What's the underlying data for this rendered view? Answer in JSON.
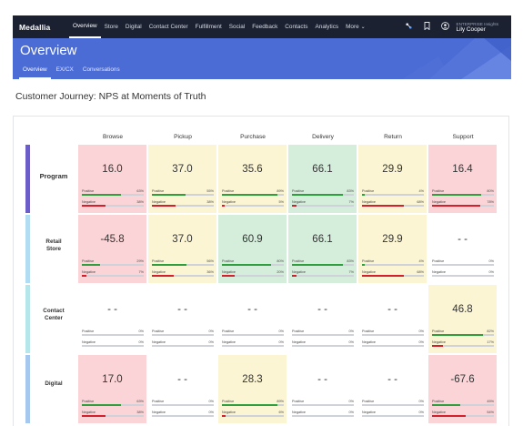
{
  "nav": {
    "brand": "Medallia",
    "items": [
      {
        "label": "Overview",
        "active": true
      },
      {
        "label": "Store"
      },
      {
        "label": "Digital"
      },
      {
        "label": "Contact Center"
      },
      {
        "label": "Fulfillment"
      },
      {
        "label": "Social"
      },
      {
        "label": "Feedback"
      },
      {
        "label": "Contacts"
      },
      {
        "label": "Analytics"
      },
      {
        "label": "More"
      }
    ],
    "user_org": "ENTERPRISE Insights",
    "user_name": "Lily Cooper"
  },
  "header": {
    "title": "Overview",
    "tabs": [
      {
        "label": "Overview",
        "active": true
      },
      {
        "label": "EX/CX"
      },
      {
        "label": "Conversations"
      }
    ]
  },
  "page_title": "Customer Journey: NPS at Moments of Truth",
  "grid": {
    "positive_label": "Positive",
    "negative_label": "Negative",
    "columns": [
      "Browse",
      "Pickup",
      "Purchase",
      "Delivery",
      "Return",
      "Support"
    ],
    "rows": [
      {
        "label": "Program",
        "bar_color": "#6b5fc7",
        "cells": [
          {
            "value": "16.0",
            "bg": "#fad4d6",
            "pos": "63%",
            "neg": "38%",
            "pos_frac": 0.63,
            "neg_frac": 0.38
          },
          {
            "value": "37.0",
            "bg": "#fbf5d3",
            "pos": "55%",
            "neg": "38%",
            "pos_frac": 0.55,
            "neg_frac": 0.38
          },
          {
            "value": "35.6",
            "bg": "#fbf5d3",
            "pos": "89%",
            "neg": "5%",
            "pos_frac": 0.89,
            "neg_frac": 0.05
          },
          {
            "value": "66.1",
            "bg": "#d5eedb",
            "pos": "83%",
            "neg": "7%",
            "pos_frac": 0.83,
            "neg_frac": 0.07
          },
          {
            "value": "29.9",
            "bg": "#fbf5d3",
            "pos": "4%",
            "neg": "68%",
            "pos_frac": 0.04,
            "neg_frac": 0.68
          },
          {
            "value": "16.4",
            "bg": "#fad4d6",
            "pos": "80%",
            "neg": "78%",
            "pos_frac": 0.8,
            "neg_frac": 0.78
          }
        ]
      },
      {
        "label": "Retail Store",
        "bar_color": "#b2dcf2",
        "cells": [
          {
            "value": "-45.8",
            "bg": "#fad4d6",
            "pos": "29%",
            "neg": "7%",
            "pos_frac": 0.29,
            "neg_frac": 0.07
          },
          {
            "value": "37.0",
            "bg": "#fbf5d3",
            "pos": "56%",
            "neg": "36%",
            "pos_frac": 0.56,
            "neg_frac": 0.36
          },
          {
            "value": "60.9",
            "bg": "#d5eedb",
            "pos": "80%",
            "neg": "20%",
            "pos_frac": 0.8,
            "neg_frac": 0.2
          },
          {
            "value": "66.1",
            "bg": "#d5eedb",
            "pos": "83%",
            "neg": "7%",
            "pos_frac": 0.83,
            "neg_frac": 0.07
          },
          {
            "value": "29.9",
            "bg": "#fbf5d3",
            "pos": "4%",
            "neg": "68%",
            "pos_frac": 0.04,
            "neg_frac": 0.68
          },
          {
            "value": "- -",
            "bg": "#ffffff",
            "pos": "0%",
            "neg": "0%",
            "pos_frac": 0,
            "neg_frac": 0
          }
        ]
      },
      {
        "label": "Contact Center",
        "bar_color": "#b7e6ea",
        "cells": [
          {
            "value": "- -",
            "bg": "#ffffff",
            "pos": "0%",
            "neg": "0%",
            "pos_frac": 0,
            "neg_frac": 0
          },
          {
            "value": "- -",
            "bg": "#ffffff",
            "pos": "0%",
            "neg": "0%",
            "pos_frac": 0,
            "neg_frac": 0
          },
          {
            "value": "- -",
            "bg": "#ffffff",
            "pos": "0%",
            "neg": "0%",
            "pos_frac": 0,
            "neg_frac": 0
          },
          {
            "value": "- -",
            "bg": "#ffffff",
            "pos": "0%",
            "neg": "0%",
            "pos_frac": 0,
            "neg_frac": 0
          },
          {
            "value": "- -",
            "bg": "#ffffff",
            "pos": "0%",
            "neg": "0%",
            "pos_frac": 0,
            "neg_frac": 0
          },
          {
            "value": "46.8",
            "bg": "#fbf5d3",
            "pos": "82%",
            "neg": "17%",
            "pos_frac": 0.82,
            "neg_frac": 0.17
          }
        ]
      },
      {
        "label": "Digital",
        "bar_color": "#a6c8ee",
        "cells": [
          {
            "value": "17.0",
            "bg": "#fad4d6",
            "pos": "63%",
            "neg": "38%",
            "pos_frac": 0.63,
            "neg_frac": 0.38
          },
          {
            "value": "- -",
            "bg": "#ffffff",
            "pos": "0%",
            "neg": "0%",
            "pos_frac": 0,
            "neg_frac": 0
          },
          {
            "value": "28.3",
            "bg": "#fbf5d3",
            "pos": "89%",
            "neg": "6%",
            "pos_frac": 0.89,
            "neg_frac": 0.06
          },
          {
            "value": "- -",
            "bg": "#ffffff",
            "pos": "0%",
            "neg": "0%",
            "pos_frac": 0,
            "neg_frac": 0
          },
          {
            "value": "- -",
            "bg": "#ffffff",
            "pos": "0%",
            "neg": "0%",
            "pos_frac": 0,
            "neg_frac": 0
          },
          {
            "value": "-67.6",
            "bg": "#fad4d6",
            "pos": "45%",
            "neg": "54%",
            "pos_frac": 0.45,
            "neg_frac": 0.54
          }
        ]
      }
    ]
  }
}
